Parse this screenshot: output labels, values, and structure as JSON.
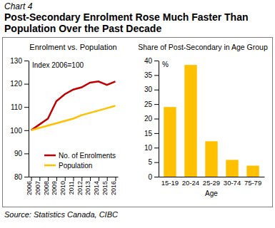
{
  "header": {
    "label": "Chart 4",
    "title": "Post-Secondary Enrolment Rose Much Faster Than Population Over the Past Decade"
  },
  "source": "Source: Statistics Canada, CIBC",
  "chart_data": [
    {
      "type": "line",
      "title": "Enrolment vs. Population",
      "annotation": "Index 2006=100",
      "categories": [
        "2006",
        "2007",
        "2008",
        "2009",
        "2010",
        "2011",
        "2012",
        "2013",
        "2014",
        "2015",
        "2016"
      ],
      "series": [
        {
          "name": "No. of Enrolments",
          "color": "#c00000",
          "values": [
            100,
            102.5,
            105,
            112.5,
            115.5,
            117.5,
            118.5,
            120.5,
            121,
            119.5,
            121
          ]
        },
        {
          "name": "Population",
          "color": "#ffc000",
          "values": [
            100,
            101,
            102,
            103,
            104,
            105,
            106.5,
            107.5,
            108.5,
            109.5,
            110.5
          ]
        }
      ],
      "ylim": [
        80,
        130
      ],
      "yticks": [
        80,
        90,
        100,
        110,
        120,
        130
      ],
      "grid": false,
      "legend": "bottom-right"
    },
    {
      "type": "bar",
      "title": "Share of Post-Secondary in Age Group",
      "annotation": "%",
      "x_label": "Age",
      "categories": [
        "15-19",
        "20-24",
        "25-29",
        "30-74",
        "75-79"
      ],
      "values": [
        24,
        38.5,
        12.2,
        5.8,
        3.8
      ],
      "color": "#ffc000",
      "ylim": [
        0,
        40
      ],
      "yticks": [
        0,
        5,
        10,
        15,
        20,
        25,
        30,
        35,
        40
      ],
      "grid": false
    }
  ]
}
